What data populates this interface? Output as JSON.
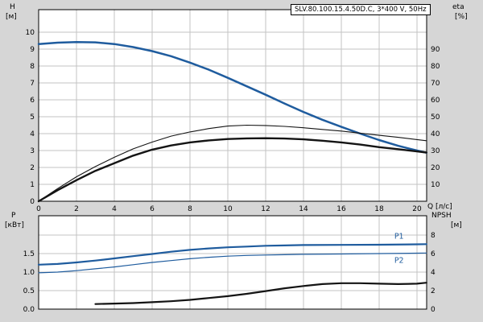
{
  "header": {
    "title": "SLV.80.100.15.4.50D.C, 3*400 V, 50Hz"
  },
  "labels": {
    "h": "H",
    "h_unit": "[м]",
    "eta": "eta",
    "eta_unit": "[%]",
    "q": "Q [л/с]",
    "p": "P",
    "p_unit": "[кВт]",
    "npsh": "NPSH",
    "npsh_unit": "[м]"
  },
  "colors": {
    "background": "#d6d6d6",
    "plot_bg": "#ffffff",
    "grid": "#c3c3c3",
    "axis": "#000000",
    "blue": "#1f5c9e",
    "black": "#141414"
  },
  "chart_data": [
    {
      "id": "hq-eta",
      "type": "line",
      "title": "SLV.80.100.15.4.50D.C, 3*400 V, 50Hz",
      "xlabel": "Q [л/с]",
      "ylabel_left": "H [м]",
      "ylabel_right": "eta [%]",
      "xlim": [
        0,
        20.5
      ],
      "ylim_left": [
        0,
        11.3
      ],
      "ylim_right": [
        0,
        113
      ],
      "grid": true,
      "x_ticks": [
        "0",
        "2",
        "4",
        "6",
        "8",
        "10",
        "12",
        "14",
        "16",
        "18",
        "20"
      ],
      "y_ticks_left": [
        "0",
        "1",
        "2",
        "3",
        "4",
        "5",
        "6",
        "7",
        "8",
        "9",
        "10"
      ],
      "y_ticks_right": [
        "10",
        "20",
        "30",
        "40",
        "50",
        "60",
        "70",
        "80",
        "90"
      ],
      "series": [
        {
          "name": "H",
          "axis": "left",
          "color": "blue",
          "width": 2.5,
          "x": [
            0,
            1,
            2,
            3,
            4,
            5,
            6,
            7,
            8,
            9,
            10,
            11,
            12,
            13,
            14,
            15,
            16,
            17,
            18,
            19,
            20,
            20.5
          ],
          "y": [
            9.3,
            9.38,
            9.42,
            9.4,
            9.3,
            9.12,
            8.88,
            8.58,
            8.2,
            7.78,
            7.3,
            6.8,
            6.3,
            5.78,
            5.28,
            4.82,
            4.4,
            4.0,
            3.62,
            3.28,
            3.0,
            2.87
          ]
        },
        {
          "name": "eta1",
          "axis": "right",
          "color": "black",
          "width": 1.1,
          "x": [
            0,
            1,
            2,
            3,
            4,
            5,
            6,
            7,
            8,
            9,
            10,
            11,
            12,
            13,
            14,
            15,
            16,
            17,
            18,
            19,
            20,
            20.5
          ],
          "y": [
            0,
            7.5,
            14.5,
            20.5,
            26,
            31,
            35,
            38.5,
            41,
            43,
            44.5,
            45,
            44.8,
            44.3,
            43.5,
            42.5,
            41.5,
            40.3,
            39,
            37.8,
            36.5,
            35.8
          ]
        },
        {
          "name": "eta2",
          "axis": "right",
          "color": "black",
          "width": 2.4,
          "x": [
            0,
            1,
            2,
            3,
            4,
            5,
            6,
            7,
            8,
            9,
            10,
            11,
            12,
            13,
            14,
            15,
            16,
            17,
            18,
            19,
            20,
            20.5
          ],
          "y": [
            0,
            6.5,
            12.5,
            18,
            22.5,
            27,
            30.5,
            33,
            34.8,
            36,
            36.8,
            37.2,
            37.3,
            37.1,
            36.6,
            35.8,
            34.8,
            33.5,
            32,
            30.8,
            29.5,
            28.8
          ]
        }
      ]
    },
    {
      "id": "power-npsh",
      "type": "line",
      "ylabel_left": "P [кВт]",
      "ylabel_right": "NPSH [м]",
      "xlim": [
        0,
        20.5
      ],
      "ylim_left": [
        0,
        2.52
      ],
      "ylim_right": [
        0,
        10.1
      ],
      "grid": true,
      "x_ticks": [
        "0",
        "2",
        "4",
        "6",
        "8",
        "10",
        "12",
        "14",
        "16",
        "18",
        "20"
      ],
      "y_ticks_left": [
        "0.0",
        "0.5",
        "1.0",
        "1.5"
      ],
      "y_ticks_right": [
        "0",
        "2",
        "4",
        "6",
        "8"
      ],
      "series": [
        {
          "name": "P1",
          "axis": "left",
          "color": "blue",
          "width": 2.2,
          "label": "P1",
          "label_pos": "above",
          "x": [
            0,
            1,
            2,
            3,
            4,
            5,
            6,
            7,
            8,
            9,
            10,
            11,
            12,
            13,
            14,
            16,
            18,
            20,
            20.5
          ],
          "y": [
            1.2,
            1.22,
            1.26,
            1.31,
            1.37,
            1.43,
            1.49,
            1.55,
            1.6,
            1.64,
            1.67,
            1.69,
            1.71,
            1.72,
            1.73,
            1.735,
            1.74,
            1.75,
            1.755
          ]
        },
        {
          "name": "P2",
          "axis": "left",
          "color": "blue",
          "width": 1.2,
          "label": "P2",
          "label_pos": "below",
          "x": [
            0,
            1,
            2,
            3,
            4,
            5,
            6,
            7,
            8,
            9,
            10,
            11,
            12,
            13,
            14,
            16,
            18,
            20,
            20.5
          ],
          "y": [
            0.98,
            1.0,
            1.04,
            1.09,
            1.14,
            1.2,
            1.26,
            1.31,
            1.36,
            1.4,
            1.43,
            1.45,
            1.46,
            1.47,
            1.48,
            1.49,
            1.5,
            1.51,
            1.515
          ]
        },
        {
          "name": "NPSH",
          "axis": "right",
          "color": "black",
          "width": 2.2,
          "x": [
            3,
            4,
            5,
            6,
            7,
            8,
            9,
            10,
            11,
            12,
            13,
            14,
            15,
            16,
            17,
            18,
            19,
            20,
            20.5
          ],
          "y": [
            0.55,
            0.6,
            0.65,
            0.75,
            0.85,
            1.0,
            1.2,
            1.4,
            1.65,
            1.95,
            2.25,
            2.5,
            2.7,
            2.8,
            2.8,
            2.75,
            2.7,
            2.75,
            2.85
          ]
        }
      ]
    }
  ]
}
